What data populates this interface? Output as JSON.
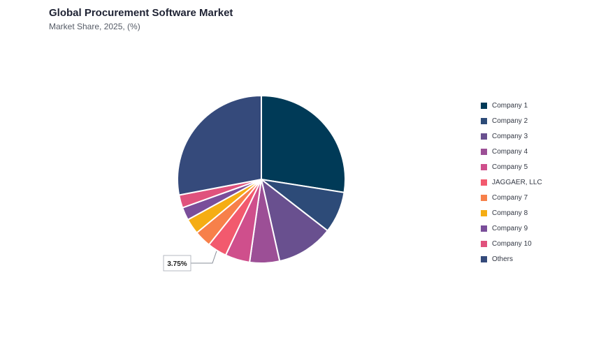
{
  "header": {
    "title": "Global Procurement Software Market",
    "subtitle": "Market Share, 2025, (%)"
  },
  "chart_data": {
    "type": "pie",
    "title": "Global Procurement Software Market",
    "subtitle": "Market Share, 2025, (%)",
    "categories": [
      "Company 1",
      "Company 2",
      "Company 3",
      "Company 4",
      "Company 5",
      "JAGGAER, LLC",
      "Company 7",
      "Company 8",
      "Company 9",
      "Company 10",
      "Others"
    ],
    "values": [
      27.5,
      8.0,
      11.0,
      5.75,
      4.75,
      3.75,
      3.25,
      3.0,
      2.5,
      2.5,
      28.0
    ],
    "colors": [
      "#003a57",
      "#2d4b78",
      "#69508f",
      "#9c4f96",
      "#cf4f8c",
      "#f25a6e",
      "#f7804a",
      "#f5ad14",
      "#7a4e9a",
      "#e0527d",
      "#354a7b"
    ],
    "annotations": [
      {
        "category": "JAGGAER, LLC",
        "label": "3.75%"
      }
    ],
    "legend_position": "right"
  }
}
